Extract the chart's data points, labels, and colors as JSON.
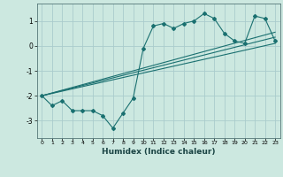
{
  "xlabel": "Humidex (Indice chaleur)",
  "background_color": "#cce8e0",
  "grid_color": "#aacccc",
  "line_color": "#1a7070",
  "xlim": [
    -0.5,
    23.5
  ],
  "ylim": [
    -3.7,
    1.7
  ],
  "yticks": [
    -3,
    -2,
    -1,
    0,
    1
  ],
  "xticks": [
    0,
    1,
    2,
    3,
    4,
    5,
    6,
    7,
    8,
    9,
    10,
    11,
    12,
    13,
    14,
    15,
    16,
    17,
    18,
    19,
    20,
    21,
    22,
    23
  ],
  "main_x": [
    0,
    1,
    2,
    3,
    4,
    5,
    6,
    7,
    8,
    9,
    10,
    11,
    12,
    13,
    14,
    15,
    16,
    17,
    18,
    19,
    20,
    21,
    22,
    23
  ],
  "main_y": [
    -2.0,
    -2.4,
    -2.2,
    -2.6,
    -2.6,
    -2.6,
    -2.8,
    -3.3,
    -2.7,
    -2.1,
    -0.1,
    0.8,
    0.9,
    0.7,
    0.9,
    1.0,
    1.3,
    1.1,
    0.5,
    0.2,
    0.1,
    1.2,
    1.1,
    0.2
  ],
  "line2_x": [
    0,
    23
  ],
  "line2_y": [
    -2.0,
    0.35
  ],
  "line3_x": [
    0,
    23
  ],
  "line3_y": [
    -2.0,
    0.55
  ],
  "line4_x": [
    0,
    23
  ],
  "line4_y": [
    -2.0,
    0.1
  ]
}
